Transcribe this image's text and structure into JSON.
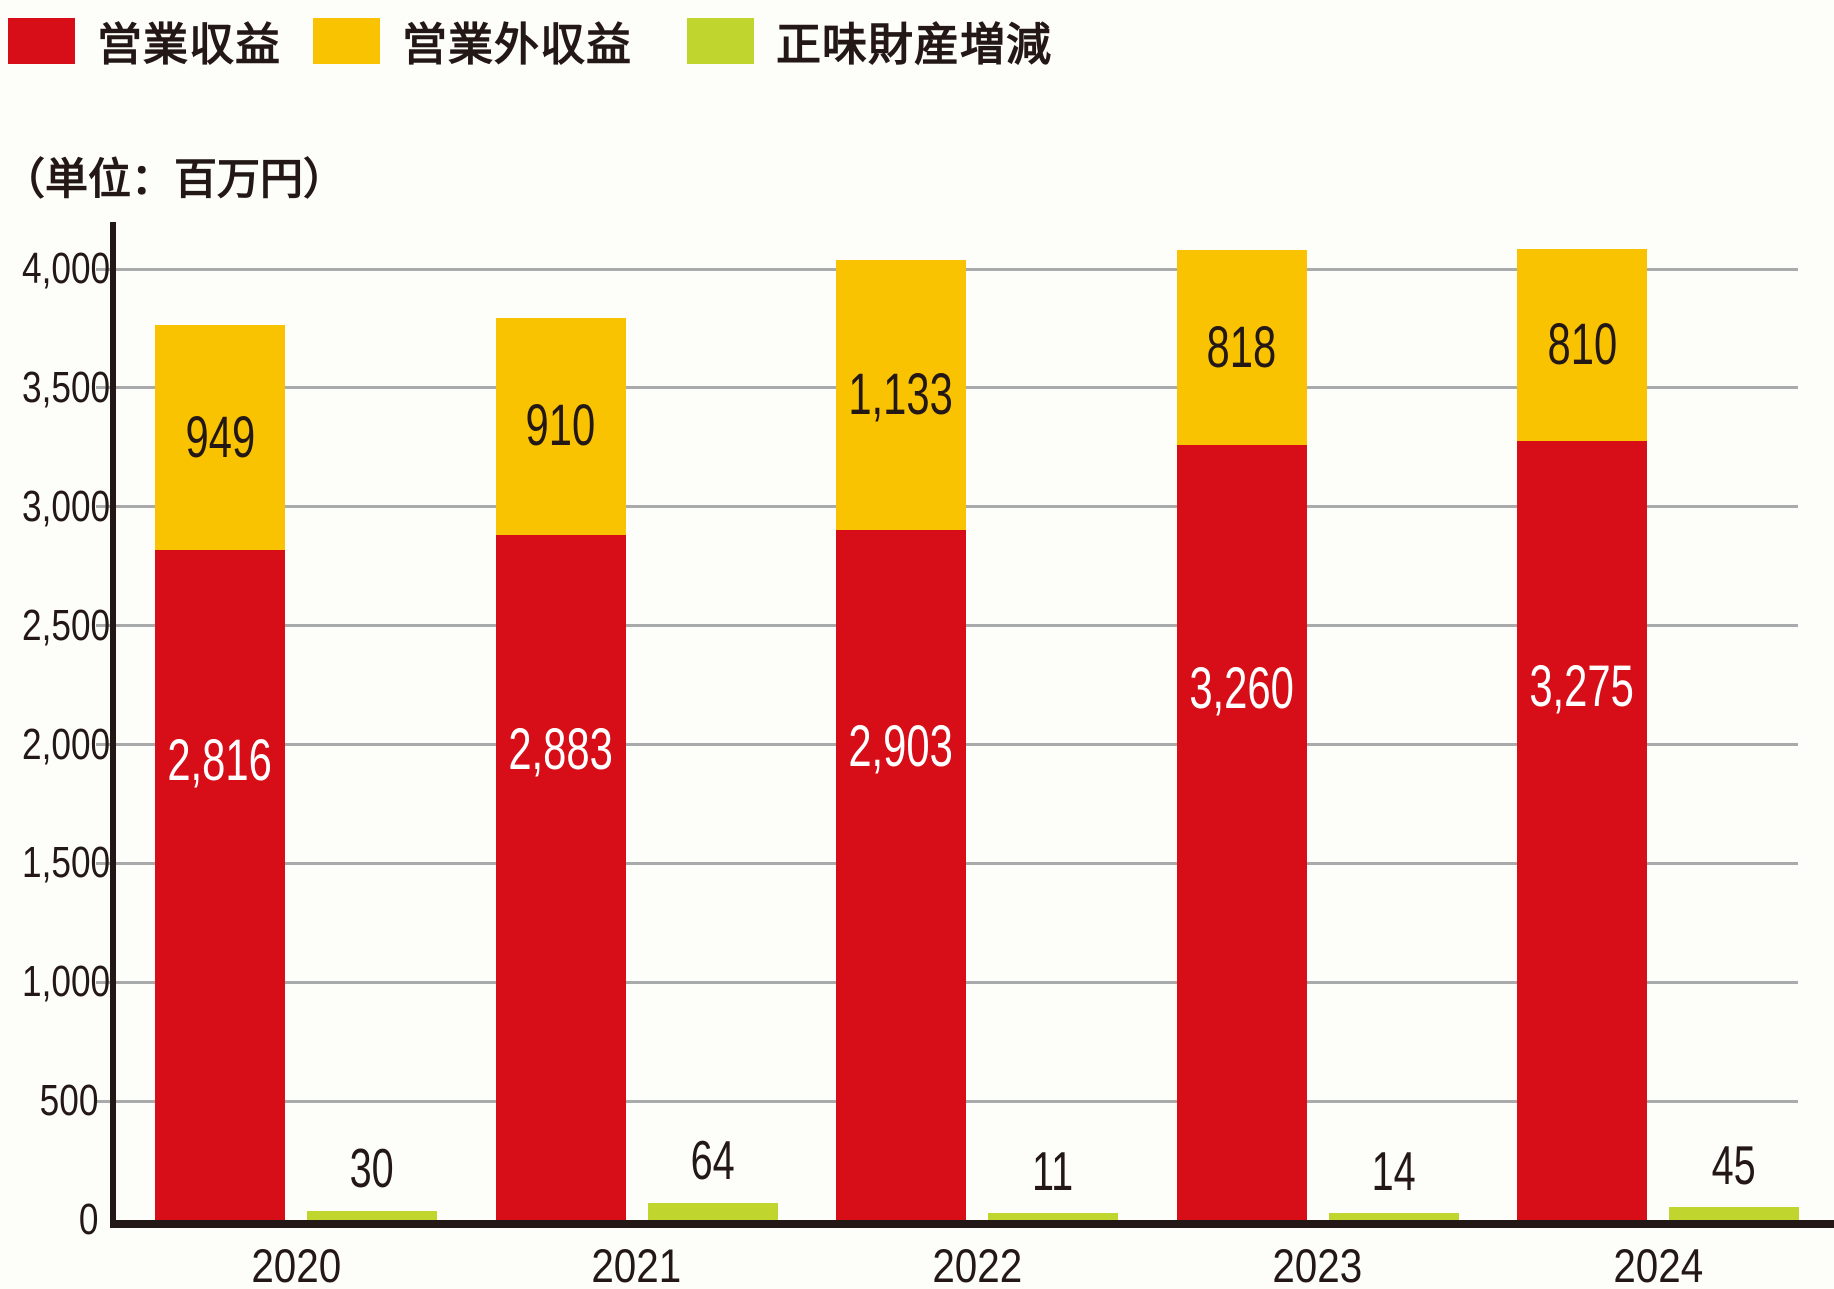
{
  "legend": {
    "items": [
      {
        "id": "operating-revenue",
        "label": "営業収益",
        "color": "#d70d18"
      },
      {
        "id": "non-operating-revenue",
        "label": "営業外収益",
        "color": "#f9c301"
      },
      {
        "id": "net-assets-change",
        "label": "正味財産増減",
        "color": "#c0d52e"
      }
    ]
  },
  "unit_label": "（単位：百万円）",
  "chart_data": {
    "type": "bar",
    "stacked": true,
    "title": "",
    "xlabel": "",
    "ylabel": "",
    "unit": "百万円",
    "categories": [
      "2020",
      "2021",
      "2022",
      "2023",
      "2024"
    ],
    "series": [
      {
        "id": "operating-revenue",
        "name": "営業収益",
        "color": "#d70d18",
        "stack": "revenue",
        "values": [
          2816,
          2883,
          2903,
          3260,
          3275
        ],
        "labels": [
          "2,816",
          "2,883",
          "2,903",
          "3,260",
          "3,275"
        ],
        "label_color": "#ffffff"
      },
      {
        "id": "non-operating-revenue",
        "name": "営業外収益",
        "color": "#f9c301",
        "stack": "revenue",
        "values": [
          949,
          910,
          1133,
          818,
          810
        ],
        "labels": [
          "949",
          "910",
          "1,133",
          "818",
          "810"
        ],
        "label_color": "#231815"
      },
      {
        "id": "net-assets-change",
        "name": "正味財産増減",
        "color": "#c0d52e",
        "stack": null,
        "values": [
          30,
          64,
          11,
          14,
          45
        ],
        "labels": [
          "30",
          "64",
          "11",
          "14",
          "45"
        ],
        "label_color": "#231815"
      }
    ],
    "ylim": [
      0,
      4000
    ],
    "ytick_interval": 500,
    "yticks": [
      "0",
      "500",
      "1,000",
      "1,500",
      "2,000",
      "2,500",
      "3,000",
      "3,500",
      "4,000"
    ],
    "grid": true,
    "legend_position": "top-left"
  },
  "colors": {
    "background": "#fdfdfa",
    "grid": "#a9aaab",
    "axis": "#231815",
    "text": "#231815"
  }
}
